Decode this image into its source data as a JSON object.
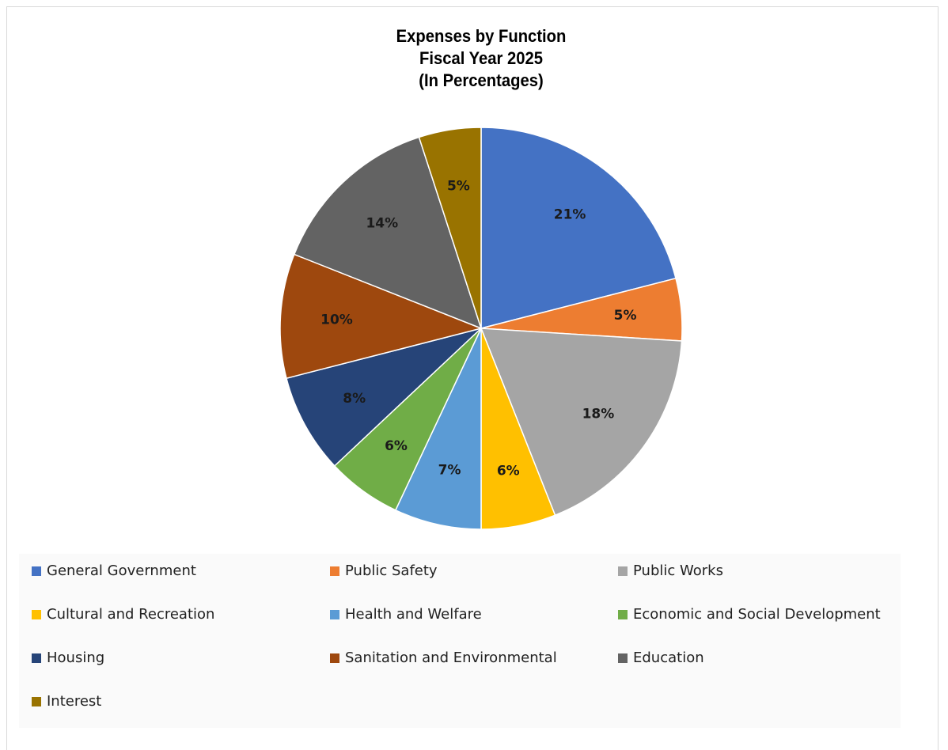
{
  "chart_data": {
    "type": "pie",
    "title": [
      "Expenses by Function",
      "Fiscal Year 2025",
      "(In Percentages)"
    ],
    "categories": [
      "General Government",
      "Public Safety",
      "Public Works",
      "Cultural and Recreation",
      "Health and Welfare",
      "Economic and Social Development",
      "Housing",
      "Sanitation and Environmental",
      "Education",
      "Interest"
    ],
    "values": [
      21,
      5,
      18,
      6,
      7,
      6,
      8,
      10,
      14,
      5
    ],
    "data_labels": [
      "21%",
      "5%",
      "18%",
      "6%",
      "7%",
      "6%",
      "8%",
      "10%",
      "14%",
      "5%"
    ],
    "colors": [
      "#4472c4",
      "#ed7d31",
      "#a5a5a5",
      "#ffc000",
      "#5b9bd5",
      "#70ad47",
      "#264478",
      "#9e480e",
      "#636363",
      "#997300"
    ],
    "legend_position": "bottom"
  }
}
